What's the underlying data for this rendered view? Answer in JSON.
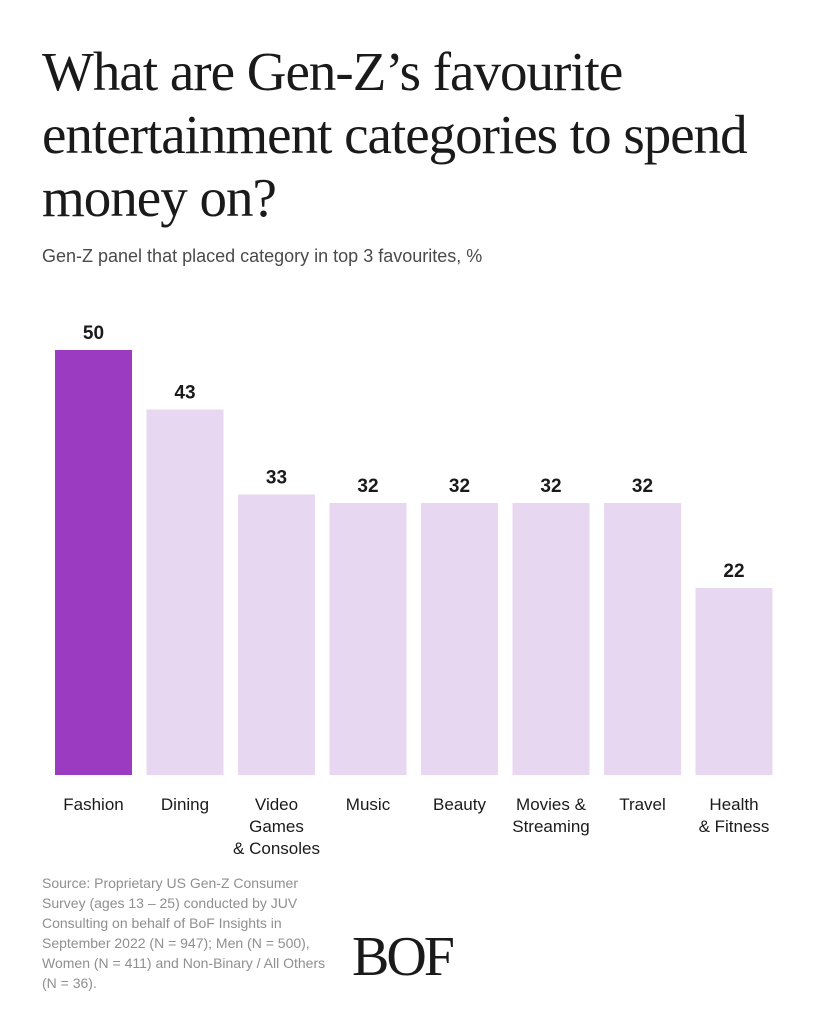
{
  "title": "What are Gen-Z’s favourite entertainment categories to spend money on?",
  "subtitle": "Gen-Z panel that placed category in top 3 favourites, %",
  "source": "Source: Proprietary US Gen-Z Consumer Survey (ages 13 – 25) conducted by JUV Consulting on behalf of BoF Insights in September 2022 (N = 947); Men (N = 500), Women (N = 411) and Non-Binary / All Others (N = 36).",
  "logo": "BOF",
  "colors": {
    "highlight": "#9b3bc1",
    "bar": "#e8d7f0",
    "text": "#1a1a1a",
    "muted": "#8f8f8f"
  },
  "chart_data": {
    "type": "bar",
    "title": "What are Gen-Z’s favourite entertainment categories to spend money on?",
    "ylabel": "Gen-Z panel that placed category in top 3 favourites, %",
    "categories": [
      [
        "Fashion"
      ],
      [
        "Dining"
      ],
      [
        "Video",
        "Games",
        "& Consoles"
      ],
      [
        "Music"
      ],
      [
        "Beauty"
      ],
      [
        "Movies &",
        "Streaming"
      ],
      [
        "Travel"
      ],
      [
        "Health",
        "& Fitness"
      ]
    ],
    "values": [
      50,
      43,
      33,
      32,
      32,
      32,
      32,
      22
    ],
    "highlight_index": 0,
    "ylim": [
      0,
      50
    ],
    "grid": false,
    "data_labels": true
  }
}
